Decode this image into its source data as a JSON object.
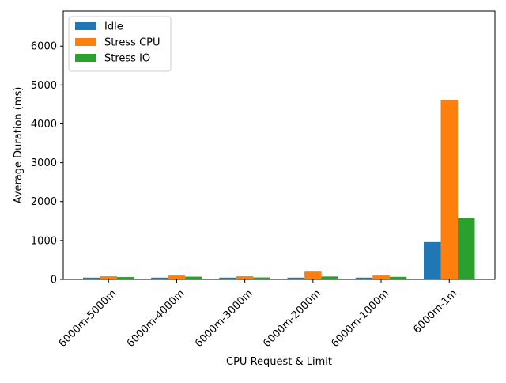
{
  "chart_data": {
    "type": "bar",
    "title": "",
    "xlabel": "CPU Request & Limit",
    "ylabel": "Average Duration (ms)",
    "ylim": [
      0,
      6900
    ],
    "yticks": [
      0,
      1000,
      2000,
      3000,
      4000,
      5000,
      6000
    ],
    "grid": false,
    "legend_position": "top-left",
    "categories": [
      "6000m-5000m",
      "6000m-4000m",
      "6000m-3000m",
      "6000m-2000m",
      "6000m-1000m",
      "6000m-1m"
    ],
    "series": [
      {
        "name": "Idle",
        "color": "#1f77b4",
        "values": [
          45,
          45,
          45,
          45,
          45,
          960
        ]
      },
      {
        "name": "Stress CPU",
        "color": "#ff7f0e",
        "values": [
          80,
          100,
          80,
          200,
          100,
          4610
        ]
      },
      {
        "name": "Stress IO",
        "color": "#2ca02c",
        "values": [
          60,
          70,
          50,
          75,
          65,
          1570
        ]
      }
    ]
  }
}
